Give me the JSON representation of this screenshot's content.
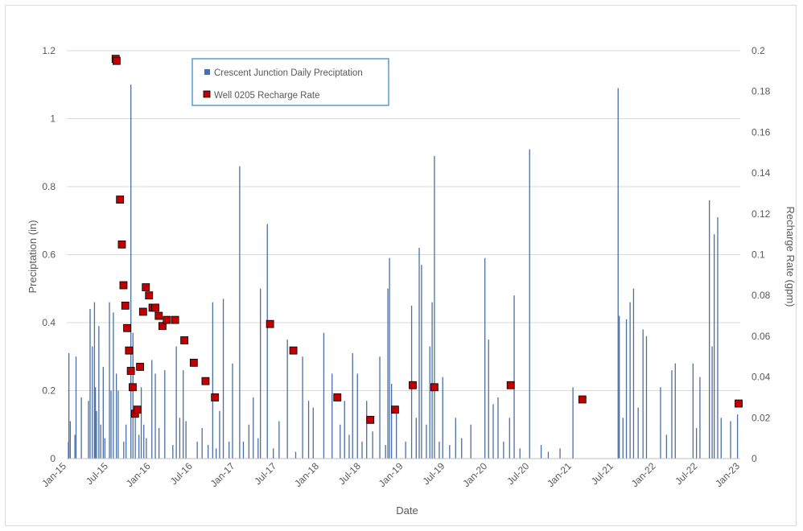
{
  "chart_data": {
    "type": "bar",
    "xlabel": "Date",
    "ylabel_left": "Preciptation (in)",
    "ylabel_right": "Recharge Rate (gpm)",
    "ylim_left": [
      0,
      1.2
    ],
    "ylim_right": [
      0,
      0.2
    ],
    "yticks_left": [
      "0",
      "0.2",
      "0.4",
      "0.6",
      "0.8",
      "1",
      "1.2"
    ],
    "yticks_right": [
      "0",
      "0.02",
      "0.04",
      "0.06",
      "0.08",
      "0.1",
      "0.12",
      "0.14",
      "0.16",
      "0.18",
      "0.2"
    ],
    "xlim": [
      "2015-01-01",
      "2023-01-01"
    ],
    "xticks": [
      {
        "date": "2015-01-01",
        "label": "Jan-15"
      },
      {
        "date": "2015-07-01",
        "label": "Jul-15"
      },
      {
        "date": "2016-01-01",
        "label": "Jan-16"
      },
      {
        "date": "2016-07-01",
        "label": "Jul-16"
      },
      {
        "date": "2017-01-01",
        "label": "Jan-17"
      },
      {
        "date": "2017-07-01",
        "label": "Jul-17"
      },
      {
        "date": "2018-01-01",
        "label": "Jan-18"
      },
      {
        "date": "2018-07-01",
        "label": "Jul-18"
      },
      {
        "date": "2019-01-01",
        "label": "Jan-19"
      },
      {
        "date": "2019-07-01",
        "label": "Jul-19"
      },
      {
        "date": "2020-01-01",
        "label": "Jan-20"
      },
      {
        "date": "2020-07-01",
        "label": "Jul-20"
      },
      {
        "date": "2021-01-01",
        "label": "Jan-21"
      },
      {
        "date": "2021-07-01",
        "label": "Jul-21"
      },
      {
        "date": "2022-01-01",
        "label": "Jan-22"
      },
      {
        "date": "2022-07-01",
        "label": "Jul-22"
      },
      {
        "date": "2023-01-01",
        "label": "Jan-23"
      }
    ],
    "grid": true,
    "legend_position": "top-left",
    "series": [
      {
        "name": "Crescent Junction Daily Preciptation",
        "type": "bar",
        "axis": "left",
        "color": "#4a6fa5",
        "points": [
          [
            "2015-01-08",
            0.05
          ],
          [
            "2015-01-10",
            0.31
          ],
          [
            "2015-01-16",
            0.11
          ],
          [
            "2015-02-05",
            0.07
          ],
          [
            "2015-02-10",
            0.3
          ],
          [
            "2015-03-05",
            0.18
          ],
          [
            "2015-04-05",
            0.17
          ],
          [
            "2015-04-12",
            0.44
          ],
          [
            "2015-04-22",
            0.33
          ],
          [
            "2015-05-01",
            0.46
          ],
          [
            "2015-05-05",
            0.21
          ],
          [
            "2015-05-10",
            0.14
          ],
          [
            "2015-05-20",
            0.39
          ],
          [
            "2015-05-28",
            0.1
          ],
          [
            "2015-06-08",
            0.27
          ],
          [
            "2015-06-15",
            0.06
          ],
          [
            "2015-07-05",
            0.46
          ],
          [
            "2015-07-12",
            0.2
          ],
          [
            "2015-07-22",
            0.43
          ],
          [
            "2015-08-04",
            0.25
          ],
          [
            "2015-08-12",
            0.2
          ],
          [
            "2015-09-05",
            0.05
          ],
          [
            "2015-09-15",
            0.1
          ],
          [
            "2015-10-06",
            1.1
          ],
          [
            "2015-10-15",
            0.37
          ],
          [
            "2015-10-25",
            0.14
          ],
          [
            "2015-11-10",
            0.07
          ],
          [
            "2015-11-20",
            0.21
          ],
          [
            "2015-12-01",
            0.1
          ],
          [
            "2015-12-12",
            0.06
          ],
          [
            "2016-01-05",
            0.29
          ],
          [
            "2016-01-20",
            0.25
          ],
          [
            "2016-02-05",
            0.09
          ],
          [
            "2016-03-01",
            0.26
          ],
          [
            "2016-04-05",
            0.04
          ],
          [
            "2016-04-20",
            0.33
          ],
          [
            "2016-05-05",
            0.12
          ],
          [
            "2016-05-20",
            0.26
          ],
          [
            "2016-06-01",
            0.11
          ],
          [
            "2016-07-20",
            0.05
          ],
          [
            "2016-08-10",
            0.09
          ],
          [
            "2016-09-05",
            0.04
          ],
          [
            "2016-09-25",
            0.46
          ],
          [
            "2016-10-10",
            0.03
          ],
          [
            "2016-10-25",
            0.14
          ],
          [
            "2016-11-10",
            0.47
          ],
          [
            "2016-12-05",
            0.05
          ],
          [
            "2016-12-20",
            0.28
          ],
          [
            "2017-01-20",
            0.86
          ],
          [
            "2017-02-05",
            0.05
          ],
          [
            "2017-03-01",
            0.1
          ],
          [
            "2017-03-20",
            0.18
          ],
          [
            "2017-04-10",
            0.06
          ],
          [
            "2017-04-20",
            0.5
          ],
          [
            "2017-05-20",
            0.69
          ],
          [
            "2017-06-15",
            0.03
          ],
          [
            "2017-07-10",
            0.11
          ],
          [
            "2017-08-15",
            0.35
          ],
          [
            "2017-09-20",
            0.02
          ],
          [
            "2017-10-20",
            0.3
          ],
          [
            "2017-11-15",
            0.17
          ],
          [
            "2017-12-05",
            0.15
          ],
          [
            "2018-01-20",
            0.37
          ],
          [
            "2018-02-25",
            0.25
          ],
          [
            "2018-04-01",
            0.1
          ],
          [
            "2018-04-20",
            0.17
          ],
          [
            "2018-05-10",
            0.07
          ],
          [
            "2018-05-25",
            0.31
          ],
          [
            "2018-06-15",
            0.25
          ],
          [
            "2018-07-05",
            0.05
          ],
          [
            "2018-07-25",
            0.17
          ],
          [
            "2018-08-20",
            0.08
          ],
          [
            "2018-09-20",
            0.3
          ],
          [
            "2018-10-15",
            0.04
          ],
          [
            "2018-10-25",
            0.5
          ],
          [
            "2018-11-01",
            0.59
          ],
          [
            "2018-11-10",
            0.22
          ],
          [
            "2018-12-01",
            0.15
          ],
          [
            "2019-01-10",
            0.05
          ],
          [
            "2019-02-05",
            0.45
          ],
          [
            "2019-02-25",
            0.12
          ],
          [
            "2019-03-10",
            0.62
          ],
          [
            "2019-03-20",
            0.57
          ],
          [
            "2019-04-10",
            0.1
          ],
          [
            "2019-04-25",
            0.33
          ],
          [
            "2019-05-05",
            0.46
          ],
          [
            "2019-05-15",
            0.89
          ],
          [
            "2019-06-05",
            0.05
          ],
          [
            "2019-06-20",
            0.24
          ],
          [
            "2019-07-20",
            0.04
          ],
          [
            "2019-08-15",
            0.12
          ],
          [
            "2019-09-10",
            0.06
          ],
          [
            "2019-10-20",
            0.1
          ],
          [
            "2019-12-20",
            0.59
          ],
          [
            "2020-01-05",
            0.35
          ],
          [
            "2020-01-25",
            0.16
          ],
          [
            "2020-02-15",
            0.18
          ],
          [
            "2020-03-10",
            0.05
          ],
          [
            "2020-04-05",
            0.12
          ],
          [
            "2020-04-25",
            0.48
          ],
          [
            "2020-05-20",
            0.03
          ],
          [
            "2020-07-01",
            0.91
          ],
          [
            "2020-08-20",
            0.04
          ],
          [
            "2020-09-20",
            0.02
          ],
          [
            "2020-11-10",
            0.03
          ],
          [
            "2021-01-05",
            0.21
          ],
          [
            "2021-07-20",
            1.09
          ],
          [
            "2021-07-25",
            0.42
          ],
          [
            "2021-08-10",
            0.12
          ],
          [
            "2021-08-25",
            0.41
          ],
          [
            "2021-09-10",
            0.46
          ],
          [
            "2021-09-25",
            0.5
          ],
          [
            "2021-10-15",
            0.15
          ],
          [
            "2021-11-05",
            0.38
          ],
          [
            "2021-11-20",
            0.36
          ],
          [
            "2022-01-20",
            0.21
          ],
          [
            "2022-02-15",
            0.07
          ],
          [
            "2022-03-10",
            0.26
          ],
          [
            "2022-03-25",
            0.28
          ],
          [
            "2022-06-10",
            0.28
          ],
          [
            "2022-06-25",
            0.09
          ],
          [
            "2022-07-10",
            0.24
          ],
          [
            "2022-08-20",
            0.76
          ],
          [
            "2022-09-01",
            0.33
          ],
          [
            "2022-09-10",
            0.66
          ],
          [
            "2022-09-25",
            0.71
          ],
          [
            "2022-10-10",
            0.12
          ],
          [
            "2022-11-20",
            0.11
          ],
          [
            "2022-12-20",
            0.13
          ]
        ]
      },
      {
        "name": "Well 0205 Recharge Rate",
        "type": "scatter",
        "axis": "right",
        "color": "#c00000",
        "points": [
          [
            "2015-08-01",
            0.196
          ],
          [
            "2015-08-05",
            0.195
          ],
          [
            "2015-08-20",
            0.127
          ],
          [
            "2015-08-28",
            0.105
          ],
          [
            "2015-09-04",
            0.085
          ],
          [
            "2015-09-12",
            0.075
          ],
          [
            "2015-09-20",
            0.064
          ],
          [
            "2015-09-28",
            0.053
          ],
          [
            "2015-10-06",
            0.043
          ],
          [
            "2015-10-14",
            0.035
          ],
          [
            "2015-10-24",
            0.022
          ],
          [
            "2015-11-03",
            0.024
          ],
          [
            "2015-11-15",
            0.045
          ],
          [
            "2015-11-28",
            0.072
          ],
          [
            "2015-12-10",
            0.084
          ],
          [
            "2015-12-24",
            0.08
          ],
          [
            "2016-01-08",
            0.074
          ],
          [
            "2016-01-20",
            0.074
          ],
          [
            "2016-02-04",
            0.07
          ],
          [
            "2016-02-20",
            0.065
          ],
          [
            "2016-03-10",
            0.068
          ],
          [
            "2016-04-15",
            0.068
          ],
          [
            "2016-05-25",
            0.058
          ],
          [
            "2016-07-05",
            0.047
          ],
          [
            "2016-08-25",
            0.038
          ],
          [
            "2016-10-05",
            0.03
          ],
          [
            "2017-06-01",
            0.066
          ],
          [
            "2017-09-10",
            0.053
          ],
          [
            "2018-03-20",
            0.03
          ],
          [
            "2018-08-10",
            0.019
          ],
          [
            "2018-11-25",
            0.024
          ],
          [
            "2019-02-10",
            0.036
          ],
          [
            "2019-05-15",
            0.035
          ],
          [
            "2020-04-10",
            0.036
          ],
          [
            "2021-02-15",
            0.029
          ],
          [
            "2022-12-25",
            0.027
          ]
        ]
      }
    ]
  }
}
